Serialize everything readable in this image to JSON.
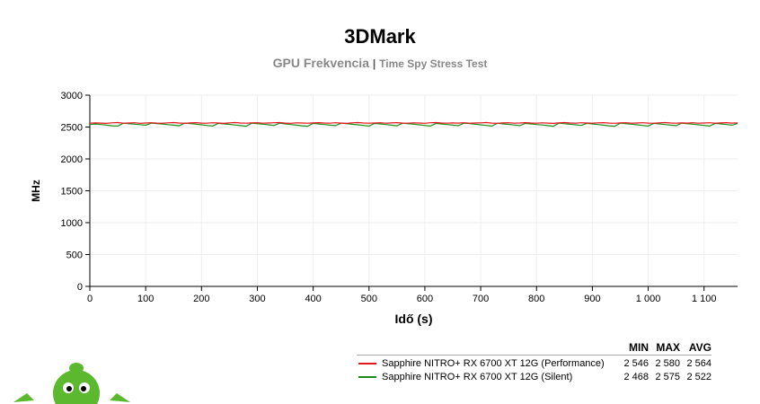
{
  "title": "3DMark",
  "subtitle_main": "GPU Frekvencia",
  "subtitle_sep": "|",
  "subtitle_test": "Time Spy Stress Test",
  "legend": {
    "headers": [
      "MIN",
      "MAX",
      "AVG"
    ],
    "items": [
      {
        "name": "Sapphire NITRO+ RX 6700 XT 12G (Performance)",
        "color": "#e8141b",
        "min": "2 546",
        "max": "2 580",
        "avg": "2 564"
      },
      {
        "name": "Sapphire NITRO+ RX 6700 XT 12G (Silent)",
        "color": "#1a8a1a",
        "min": "2 468",
        "max": "2 575",
        "avg": "2 522"
      }
    ]
  },
  "mascot": "green-alien-mascot",
  "chart_data": {
    "type": "line",
    "xlabel": "Idő (s)",
    "ylabel": "MHz",
    "xlim": [
      0,
      1160
    ],
    "ylim": [
      0,
      3000
    ],
    "xticks": [
      0,
      100,
      200,
      300,
      400,
      500,
      600,
      700,
      800,
      900,
      1000,
      1100
    ],
    "xtick_labels": [
      "0",
      "100",
      "200",
      "300",
      "400",
      "500",
      "600",
      "700",
      "800",
      "900",
      "1 000",
      "1 100"
    ],
    "yticks": [
      0,
      500,
      1000,
      1500,
      2000,
      2500,
      3000
    ],
    "grid": true,
    "x_step": 10,
    "series": [
      {
        "name": "Sapphire NITRO+ RX 6700 XT 12G (Performance)",
        "color": "#e8141b",
        "values": [
          2560,
          2565,
          2562,
          2558,
          2566,
          2570,
          2561,
          2563,
          2567,
          2559,
          2564,
          2568,
          2562,
          2560,
          2566,
          2571,
          2563,
          2559,
          2565,
          2569,
          2562,
          2560,
          2567,
          2564,
          2558,
          2566,
          2570,
          2563,
          2561,
          2565,
          2568,
          2560,
          2563,
          2567,
          2571,
          2562,
          2559,
          2566,
          2564,
          2560,
          2565,
          2569,
          2563,
          2561,
          2567,
          2562,
          2558,
          2566,
          2570,
          2564,
          2560,
          2563,
          2568,
          2561,
          2565,
          2569,
          2562,
          2560,
          2566,
          2563,
          2559,
          2567,
          2571,
          2564,
          2560,
          2565,
          2562,
          2568,
          2561,
          2563,
          2566,
          2570,
          2562,
          2559,
          2565,
          2567,
          2561,
          2564,
          2569,
          2563,
          2560,
          2566,
          2562,
          2558,
          2565,
          2570,
          2563,
          2561,
          2567,
          2564,
          2560,
          2566,
          2569,
          2562,
          2559,
          2565,
          2568,
          2561,
          2563,
          2567,
          2562,
          2560,
          2566,
          2571,
          2564,
          2561,
          2565,
          2562,
          2568,
          2560,
          2563,
          2567,
          2561,
          2565,
          2569,
          2562,
          2566
        ]
      },
      {
        "name": "Sapphire NITRO+ RX 6700 XT 12G (Silent)",
        "color": "#1a8a1a",
        "values": [
          2540,
          2548,
          2540,
          2530,
          2520,
          2515,
          2560,
          2552,
          2545,
          2538,
          2528,
          2560,
          2555,
          2548,
          2538,
          2530,
          2520,
          2562,
          2553,
          2545,
          2535,
          2525,
          2515,
          2558,
          2550,
          2542,
          2532,
          2522,
          2512,
          2560,
          2552,
          2545,
          2535,
          2525,
          2560,
          2550,
          2540,
          2530,
          2520,
          2512,
          2558,
          2548,
          2540,
          2530,
          2522,
          2560,
          2552,
          2543,
          2535,
          2525,
          2515,
          2557,
          2550,
          2540,
          2530,
          2520,
          2560,
          2552,
          2545,
          2535,
          2525,
          2515,
          2558,
          2548,
          2540,
          2530,
          2522,
          2560,
          2553,
          2545,
          2535,
          2525,
          2516,
          2560,
          2550,
          2542,
          2532,
          2522,
          2557,
          2550,
          2540,
          2532,
          2522,
          2512,
          2560,
          2552,
          2543,
          2535,
          2525,
          2558,
          2550,
          2540,
          2530,
          2520,
          2513,
          2560,
          2552,
          2545,
          2535,
          2525,
          2515,
          2558,
          2550,
          2540,
          2530,
          2522,
          2560,
          2552,
          2545,
          2535,
          2525,
          2515,
          2558,
          2550,
          2540,
          2530,
          2555
        ]
      }
    ]
  }
}
